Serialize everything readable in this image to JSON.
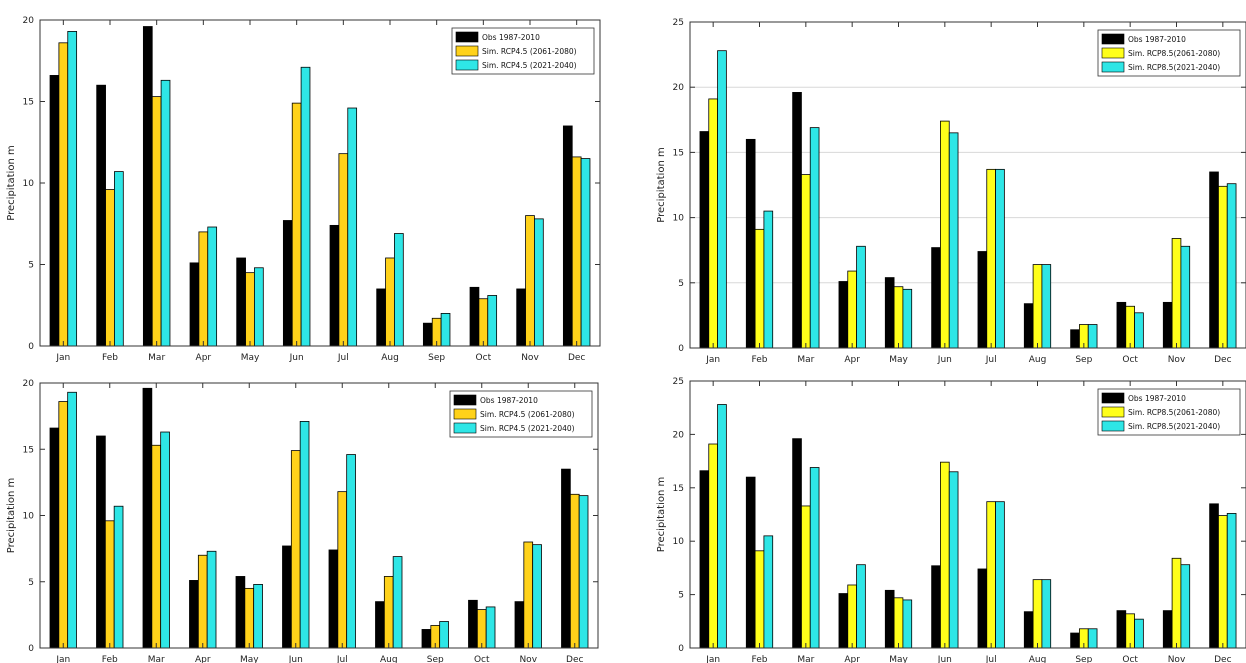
{
  "chart_data": [
    {
      "type": "bar",
      "ylabel": "Precipitation m",
      "ylim": [
        0,
        20
      ],
      "yticks": [
        0,
        5,
        10,
        15,
        20
      ],
      "grid": false,
      "legend_position": "top-right",
      "categories": [
        "Jan",
        "Feb",
        "Mar",
        "Apr",
        "May",
        "Jun",
        "Jul",
        "Aug",
        "Sep",
        "Oct",
        "Nov",
        "Dec"
      ],
      "series": [
        {
          "name": "Obs 1987-2010",
          "color": "#000000",
          "values": [
            16.6,
            16.0,
            19.6,
            5.1,
            5.4,
            7.7,
            7.4,
            3.5,
            1.4,
            3.6,
            3.5,
            13.5
          ]
        },
        {
          "name": "Sim. RCP4.5 (2061-2080)",
          "color": "#FFD21A",
          "values": [
            18.6,
            9.6,
            15.3,
            7.0,
            4.5,
            14.9,
            11.8,
            5.4,
            1.7,
            2.9,
            8.0,
            11.6
          ]
        },
        {
          "name": "Sim. RCP4.5 (2021-2040)",
          "color": "#2EE6E6",
          "values": [
            19.3,
            10.7,
            16.3,
            7.3,
            4.8,
            17.1,
            14.6,
            6.9,
            2.0,
            3.1,
            7.8,
            11.5
          ]
        }
      ]
    },
    {
      "type": "bar",
      "ylabel": "Precipitation m",
      "ylim": [
        0,
        25
      ],
      "yticks": [
        0,
        5,
        10,
        15,
        20,
        25
      ],
      "grid": true,
      "legend_position": "top-right",
      "categories": [
        "Jan",
        "Feb",
        "Mar",
        "Apr",
        "May",
        "Jun",
        "Jul",
        "Aug",
        "Sep",
        "Oct",
        "Nov",
        "Dec"
      ],
      "series": [
        {
          "name": "Obs 1987-2010",
          "color": "#000000",
          "values": [
            16.6,
            16.0,
            19.6,
            5.1,
            5.4,
            7.7,
            7.4,
            3.4,
            1.4,
            3.5,
            3.5,
            13.5
          ]
        },
        {
          "name": "Sim. RCP8.5(2061-2080)",
          "color": "#FFFF1A",
          "values": [
            19.1,
            9.1,
            13.3,
            5.9,
            4.7,
            17.4,
            13.7,
            6.4,
            1.8,
            3.2,
            8.4,
            12.4
          ]
        },
        {
          "name": "Sim. RCP8.5(2021-2040)",
          "color": "#2EE6E6",
          "values": [
            22.8,
            10.5,
            16.9,
            7.8,
            4.5,
            16.5,
            13.7,
            6.4,
            1.8,
            2.7,
            7.8,
            12.6
          ]
        }
      ]
    },
    {
      "type": "bar",
      "ylabel": "Precipitation m",
      "ylim": [
        0,
        20
      ],
      "yticks": [
        0,
        5,
        10,
        15,
        20
      ],
      "grid": false,
      "legend_position": "top-right",
      "categories": [
        "Jan",
        "Feb",
        "Mar",
        "Apr",
        "May",
        "Jun",
        "Jul",
        "Aug",
        "Sep",
        "Oct",
        "Nov",
        "Dec"
      ],
      "series": [
        {
          "name": "Obs 1987-2010",
          "color": "#000000",
          "values": [
            16.6,
            16.0,
            19.6,
            5.1,
            5.4,
            7.7,
            7.4,
            3.5,
            1.4,
            3.6,
            3.5,
            13.5
          ]
        },
        {
          "name": "Sim. RCP4.5 (2061-2080)",
          "color": "#FFD21A",
          "values": [
            18.6,
            9.6,
            15.3,
            7.0,
            4.5,
            14.9,
            11.8,
            5.4,
            1.7,
            2.9,
            8.0,
            11.6
          ]
        },
        {
          "name": "Sim. RCP4.5 (2021-2040)",
          "color": "#2EE6E6",
          "values": [
            19.3,
            10.7,
            16.3,
            7.3,
            4.8,
            17.1,
            14.6,
            6.9,
            2.0,
            3.1,
            7.8,
            11.5
          ]
        }
      ]
    },
    {
      "type": "bar",
      "ylabel": "Precipitation m",
      "ylim": [
        0,
        25
      ],
      "yticks": [
        0,
        5,
        10,
        15,
        20,
        25
      ],
      "grid": false,
      "legend_position": "top-right",
      "categories": [
        "Jan",
        "Feb",
        "Mar",
        "Apr",
        "May",
        "Jun",
        "Jul",
        "Aug",
        "Sep",
        "Oct",
        "Nov",
        "Dec"
      ],
      "series": [
        {
          "name": "Obs 1987-2010",
          "color": "#000000",
          "values": [
            16.6,
            16.0,
            19.6,
            5.1,
            5.4,
            7.7,
            7.4,
            3.4,
            1.4,
            3.5,
            3.5,
            13.5
          ]
        },
        {
          "name": "Sim. RCP8.5(2061-2080)",
          "color": "#FFFF1A",
          "values": [
            19.1,
            9.1,
            13.3,
            5.9,
            4.7,
            17.4,
            13.7,
            6.4,
            1.8,
            3.2,
            8.4,
            12.4
          ]
        },
        {
          "name": "Sim. RCP8.5(2021-2040)",
          "color": "#2EE6E6",
          "values": [
            22.8,
            10.5,
            16.9,
            7.8,
            4.5,
            16.5,
            13.7,
            6.4,
            1.8,
            2.7,
            7.8,
            12.6
          ]
        }
      ]
    }
  ]
}
